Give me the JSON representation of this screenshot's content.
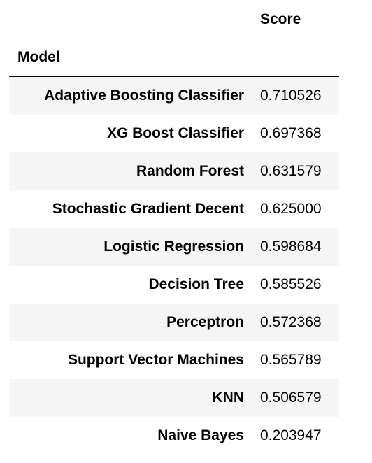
{
  "table": {
    "score_header": "Score",
    "index_header": "Model",
    "rows": [
      {
        "model": "Adaptive Boosting Classifier",
        "score": "0.710526"
      },
      {
        "model": "XG Boost Classifier",
        "score": "0.697368"
      },
      {
        "model": "Random Forest",
        "score": "0.631579"
      },
      {
        "model": "Stochastic Gradient Decent",
        "score": "0.625000"
      },
      {
        "model": "Logistic Regression",
        "score": "0.598684"
      },
      {
        "model": "Decision Tree",
        "score": "0.585526"
      },
      {
        "model": "Perceptron",
        "score": "0.572368"
      },
      {
        "model": "Support Vector Machines",
        "score": "0.565789"
      },
      {
        "model": "KNN",
        "score": "0.506579"
      },
      {
        "model": "Naive Bayes",
        "score": "0.203947"
      }
    ]
  },
  "colors": {
    "stripe": "#f5f5f5",
    "text": "#000000",
    "rule": "#000000"
  }
}
